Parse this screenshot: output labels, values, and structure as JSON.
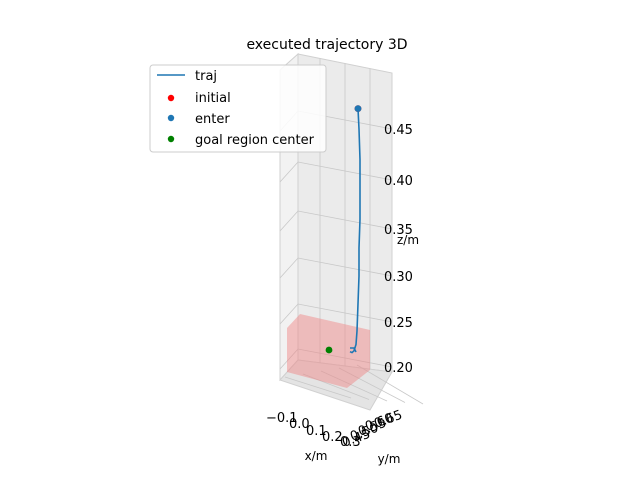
{
  "chart_data": {
    "type": "line3d",
    "title": "executed trajectory 3D",
    "xlabel": "x/m",
    "ylabel": "y/m",
    "zlabel": "z/m",
    "x_ticks": [
      "−0.1",
      "0.0",
      "0.1",
      "0.2",
      "0.3"
    ],
    "y_ticks": [
      "0.45",
      "0.50",
      "0.55",
      "0.60",
      "0.65"
    ],
    "z_ticks": [
      "0.20",
      "0.25",
      "0.30",
      "0.35",
      "0.40",
      "0.45"
    ],
    "legend": {
      "placement": "upper-left",
      "entries": [
        {
          "label": "traj",
          "kind": "line",
          "color": "#1f77b4"
        },
        {
          "label": "initial",
          "kind": "marker",
          "color": "#ff0000"
        },
        {
          "label": "enter",
          "kind": "marker",
          "color": "#1f77b4"
        },
        {
          "label": "goal region center",
          "kind": "marker",
          "color": "#008000"
        }
      ]
    },
    "series": [
      {
        "name": "traj",
        "color": "#1f77b4",
        "z": [
          0.47,
          0.45,
          0.42,
          0.39,
          0.36,
          0.33,
          0.3,
          0.27,
          0.24,
          0.225,
          0.218,
          0.216,
          0.217
        ]
      }
    ],
    "markers": {
      "initial": {
        "color": "#ff0000",
        "z": 0.47
      },
      "enter": {
        "color": "#1f77b4",
        "z": 0.47
      },
      "goal_region_center": {
        "color": "#008000"
      }
    },
    "goal_region": {
      "color": "#f08080",
      "opacity": 0.45
    },
    "grid": true
  }
}
